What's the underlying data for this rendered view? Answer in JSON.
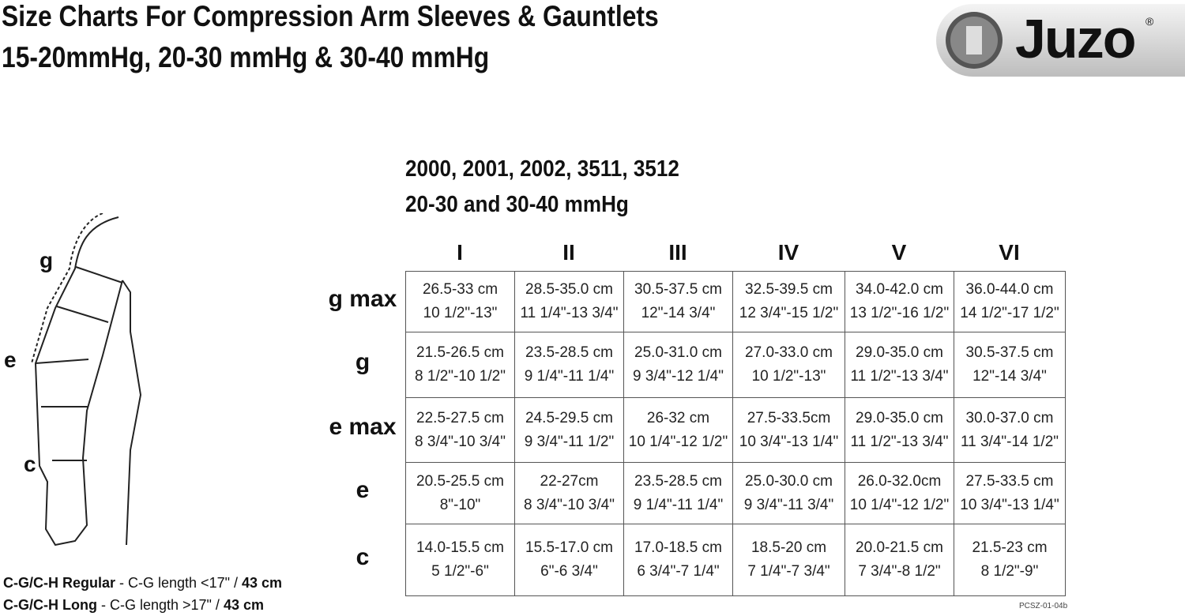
{
  "header": {
    "title_line1": "Size Charts For Compression Arm Sleeves & Gauntlets",
    "title_line2": "15-20mmHg, 20-30 mmHg & 30-40 mmHg",
    "logo": "Juzo",
    "logo_mark": "®"
  },
  "subtitle": {
    "line1": "2000, 2001, 2002, 3511, 3512",
    "line2": "20-30 and 30-40 mmHg"
  },
  "diagram": {
    "labels": [
      "g",
      "e",
      "c"
    ]
  },
  "table": {
    "columns": [
      "I",
      "II",
      "III",
      "IV",
      "V",
      "VI"
    ],
    "rows": [
      {
        "label": "g max",
        "cells": [
          {
            "cm": "26.5-33 cm",
            "in": "10 1/2\"-13\""
          },
          {
            "cm": "28.5-35.0 cm",
            "in": "11 1/4\"-13 3/4\""
          },
          {
            "cm": "30.5-37.5 cm",
            "in": "12\"-14 3/4\""
          },
          {
            "cm": "32.5-39.5 cm",
            "in": "12 3/4\"-15 1/2\""
          },
          {
            "cm": "34.0-42.0 cm",
            "in": "13 1/2\"-16 1/2\""
          },
          {
            "cm": "36.0-44.0 cm",
            "in": "14 1/2\"-17 1/2\""
          }
        ]
      },
      {
        "label": "g",
        "cells": [
          {
            "cm": "21.5-26.5 cm",
            "in": "8 1/2\"-10 1/2\""
          },
          {
            "cm": "23.5-28.5 cm",
            "in": "9 1/4\"-11 1/4\""
          },
          {
            "cm": "25.0-31.0 cm",
            "in": "9 3/4\"-12 1/4\""
          },
          {
            "cm": "27.0-33.0 cm",
            "in": "10 1/2\"-13\""
          },
          {
            "cm": "29.0-35.0 cm",
            "in": "11 1/2\"-13 3/4\""
          },
          {
            "cm": "30.5-37.5 cm",
            "in": "12\"-14 3/4\""
          }
        ]
      },
      {
        "label": "e max",
        "cells": [
          {
            "cm": "22.5-27.5 cm",
            "in": "8 3/4\"-10 3/4\""
          },
          {
            "cm": "24.5-29.5 cm",
            "in": "9 3/4\"-11 1/2\""
          },
          {
            "cm": "26-32 cm",
            "in": "10 1/4\"-12 1/2\""
          },
          {
            "cm": "27.5-33.5cm",
            "in": "10 3/4\"-13 1/4\""
          },
          {
            "cm": "29.0-35.0 cm",
            "in": "11 1/2\"-13 3/4\""
          },
          {
            "cm": "30.0-37.0 cm",
            "in": "11 3/4\"-14 1/2\""
          }
        ]
      },
      {
        "label": "e",
        "cells": [
          {
            "cm": "20.5-25.5 cm",
            "in": "8\"-10\""
          },
          {
            "cm": "22-27cm",
            "in": "8 3/4\"-10 3/4\""
          },
          {
            "cm": "23.5-28.5 cm",
            "in": "9 1/4\"-11 1/4\""
          },
          {
            "cm": "25.0-30.0 cm",
            "in": "9 3/4\"-11 3/4\""
          },
          {
            "cm": "26.0-32.0cm",
            "in": "10 1/4\"-12 1/2\""
          },
          {
            "cm": "27.5-33.5 cm",
            "in": "10 3/4\"-13 1/4\""
          }
        ]
      },
      {
        "label": "c",
        "cells": [
          {
            "cm": "14.0-15.5 cm",
            "in": "5 1/2\"-6\""
          },
          {
            "cm": "15.5-17.0 cm",
            "in": "6\"-6 3/4\""
          },
          {
            "cm": "17.0-18.5 cm",
            "in": "6 3/4\"-7 1/4\""
          },
          {
            "cm": "18.5-20 cm",
            "in": "7 1/4\"-7 3/4\""
          },
          {
            "cm": "20.0-21.5 cm",
            "in": "7 3/4\"-8 1/2\""
          },
          {
            "cm": "21.5-23 cm",
            "in": "8 1/2\"-9\""
          }
        ]
      }
    ]
  },
  "notes": [
    {
      "name": "C-G/C-H Regular",
      "text": " - C-G length <17\" / ",
      "length": "43 cm"
    },
    {
      "name": "C-G/C-H Long",
      "text": " - C-G length >17\" / ",
      "length": "43 cm"
    }
  ],
  "code": "PCSZ-01-04b"
}
